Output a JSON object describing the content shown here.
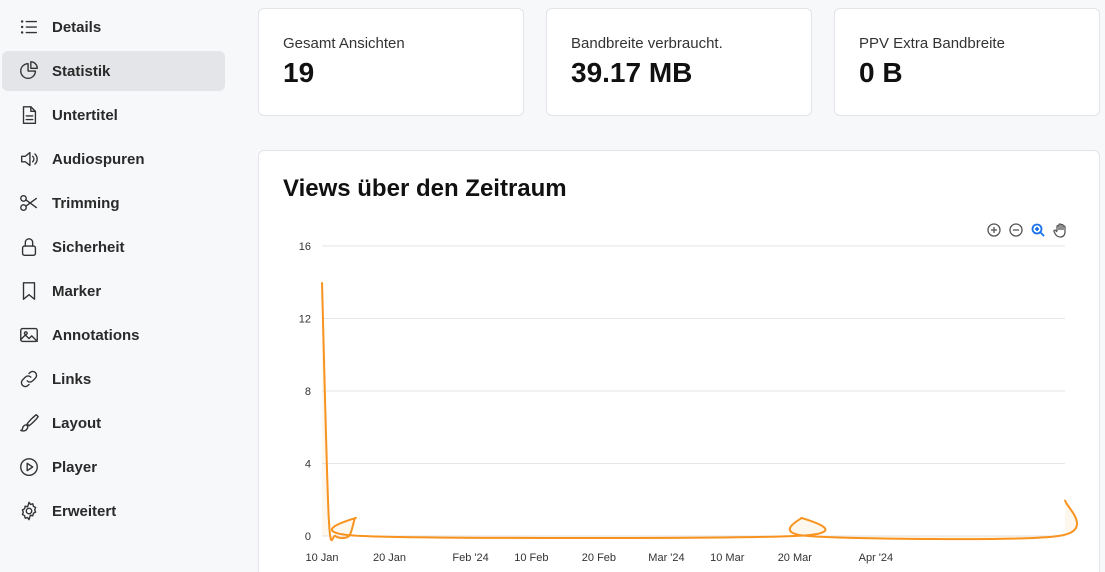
{
  "sidebar": {
    "items": [
      {
        "label": "Details",
        "icon": "list-icon",
        "active": false
      },
      {
        "label": "Statistik",
        "icon": "pie-chart-icon",
        "active": true
      },
      {
        "label": "Untertitel",
        "icon": "document-icon",
        "active": false
      },
      {
        "label": "Audiospuren",
        "icon": "speaker-icon",
        "active": false
      },
      {
        "label": "Trimming",
        "icon": "scissors-icon",
        "active": false
      },
      {
        "label": "Sicherheit",
        "icon": "lock-icon",
        "active": false
      },
      {
        "label": "Marker",
        "icon": "bookmark-icon",
        "active": false
      },
      {
        "label": "Annotations",
        "icon": "image-icon",
        "active": false
      },
      {
        "label": "Links",
        "icon": "link-icon",
        "active": false
      },
      {
        "label": "Layout",
        "icon": "brush-icon",
        "active": false
      },
      {
        "label": "Player",
        "icon": "play-icon",
        "active": false
      },
      {
        "label": "Erweitert",
        "icon": "gear-icon",
        "active": false
      }
    ]
  },
  "stats": [
    {
      "label": "Gesamt Ansichten",
      "value": "19"
    },
    {
      "label": "Bandbreite verbraucht.",
      "value": "39.17 MB"
    },
    {
      "label": "PPV Extra Bandbreite",
      "value": "0 B"
    }
  ],
  "chart_card": {
    "title": "Views über den Zeitraum",
    "tools": [
      "zoom-in-icon",
      "zoom-out-icon",
      "zoom-select-icon",
      "pan-icon"
    ]
  },
  "colors": {
    "line": "#f7931e",
    "grid": "#e6e6e6",
    "active_tool": "#1a73e8"
  },
  "chart_data": {
    "type": "line",
    "title": "Views über den Zeitraum",
    "xlabel": "",
    "ylabel": "",
    "ylim": [
      0,
      16
    ],
    "yticks": [
      0,
      4,
      8,
      12,
      16
    ],
    "xlim": [
      "2024-01-10",
      "2024-04-29"
    ],
    "xticks": [
      {
        "date": "2024-01-10",
        "label": "10 Jan"
      },
      {
        "date": "2024-01-20",
        "label": "20 Jan"
      },
      {
        "date": "2024-02-01",
        "label": "Feb '24"
      },
      {
        "date": "2024-02-10",
        "label": "10 Feb"
      },
      {
        "date": "2024-02-20",
        "label": "20 Feb"
      },
      {
        "date": "2024-03-01",
        "label": "Mar '24"
      },
      {
        "date": "2024-03-10",
        "label": "10 Mar"
      },
      {
        "date": "2024-03-20",
        "label": "20 Mar"
      },
      {
        "date": "2024-04-01",
        "label": "Apr '24"
      }
    ],
    "grid": true,
    "series": [
      {
        "points": [
          {
            "x": "2024-01-10",
            "y": 14
          },
          {
            "x": "2024-01-11",
            "y": 1
          },
          {
            "x": "2024-01-12",
            "y": 0
          },
          {
            "x": "2024-01-14",
            "y": 0
          },
          {
            "x": "2024-01-15",
            "y": 1
          },
          {
            "x": "2024-01-16",
            "y": 0
          },
          {
            "x": "2024-03-20",
            "y": 0
          },
          {
            "x": "2024-03-21",
            "y": 1
          },
          {
            "x": "2024-03-22",
            "y": 0
          },
          {
            "x": "2024-04-28",
            "y": 0
          },
          {
            "x": "2024-04-29",
            "y": 2
          }
        ]
      }
    ]
  }
}
